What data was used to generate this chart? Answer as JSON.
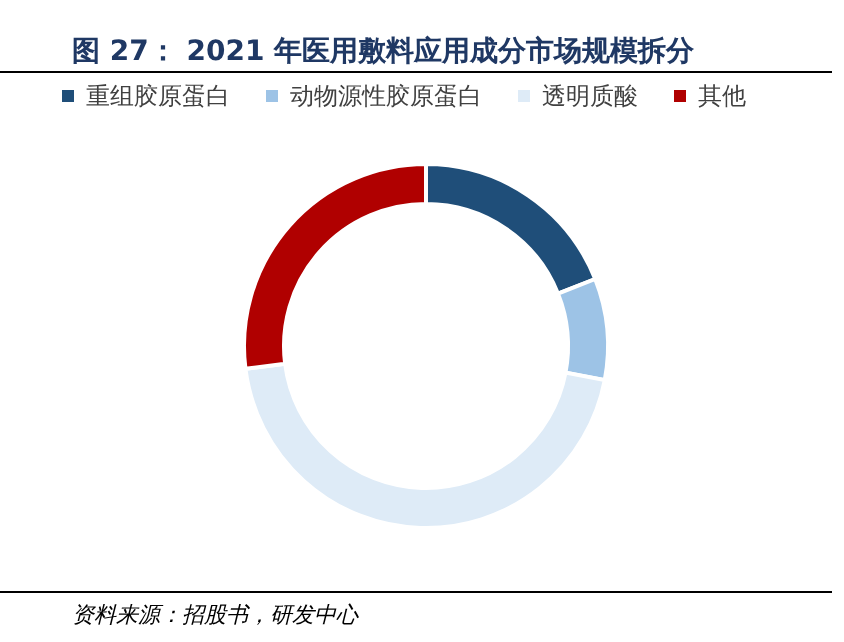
{
  "chart_data": {
    "type": "donut",
    "title": "图 27：  2021 年医用敷料应用成分市场规模拆分",
    "categories": [
      "重组胶原蛋白",
      "动物源性胶原蛋白",
      "透明质酸",
      "其他"
    ],
    "values": [
      19,
      9,
      45,
      27
    ],
    "colors": [
      "#1f4e79",
      "#9dc3e6",
      "#deebf7",
      "#b00000"
    ],
    "legend": "top",
    "annotations": [
      "资料来源：招股书，研发中心"
    ]
  }
}
